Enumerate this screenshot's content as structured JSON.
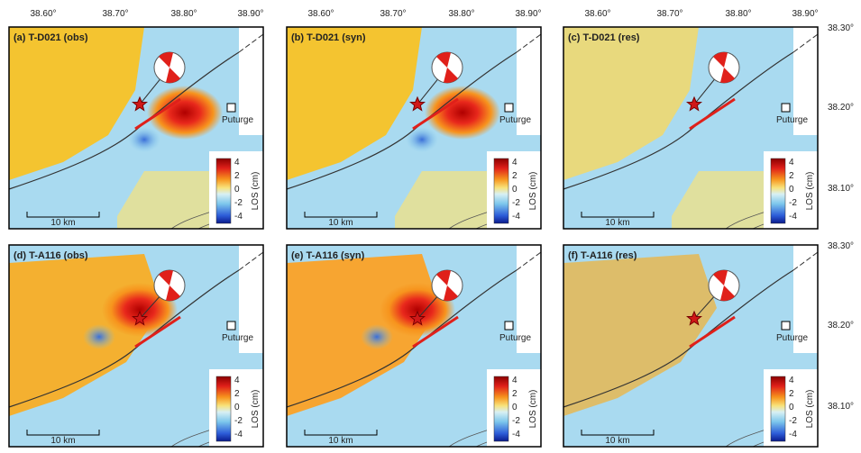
{
  "longitude_labels": [
    "38.60°",
    "38.70°",
    "38.80°",
    "38.90°"
  ],
  "latitude_labels": [
    "38.30°",
    "38.20°",
    "38.10°"
  ],
  "panels": [
    {
      "title": "(a) T-D021 (obs)"
    },
    {
      "title": "(b) T-D021 (syn)"
    },
    {
      "title": "(c) T-D021 (res)"
    },
    {
      "title": "(d) T-A116 (obs)"
    },
    {
      "title": "(e) T-A116 (syn)"
    },
    {
      "title": "(f) T-A116 (res)"
    }
  ],
  "place_label": "Puturge",
  "scale_label": "10 km",
  "colorbar": {
    "label": "LOS (cm)",
    "ticks": [
      "4",
      "2",
      "0",
      "-2",
      "-4"
    ]
  }
}
